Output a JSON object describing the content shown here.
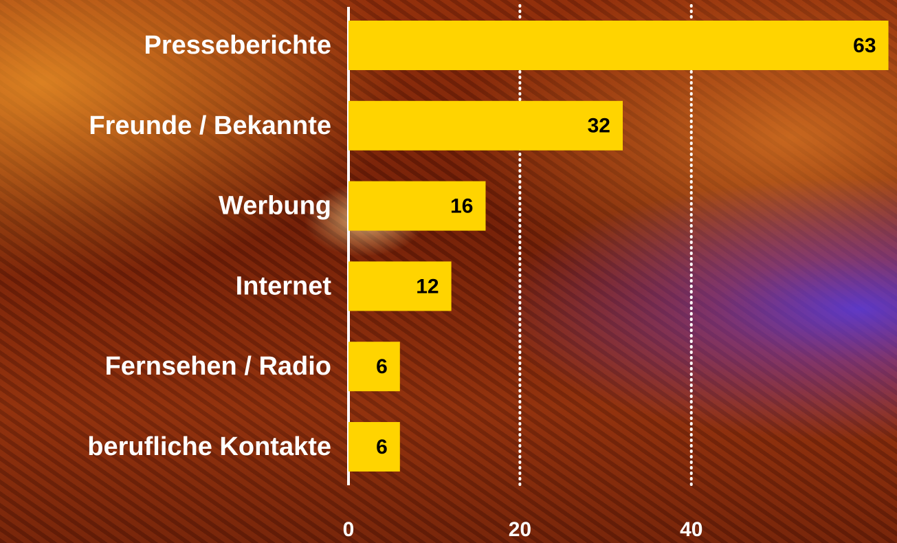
{
  "chart_data": {
    "type": "bar",
    "orientation": "horizontal",
    "categories": [
      "Presseberichte",
      "Freunde / Bekannte",
      "Werbung",
      "Internet",
      "Fernsehen / Radio",
      "berufliche Kontakte"
    ],
    "values": [
      63,
      32,
      16,
      12,
      6,
      6
    ],
    "color": "#ffd400",
    "xlim": [
      0,
      64
    ],
    "xticks": [
      0,
      20,
      40
    ],
    "grid": true
  }
}
